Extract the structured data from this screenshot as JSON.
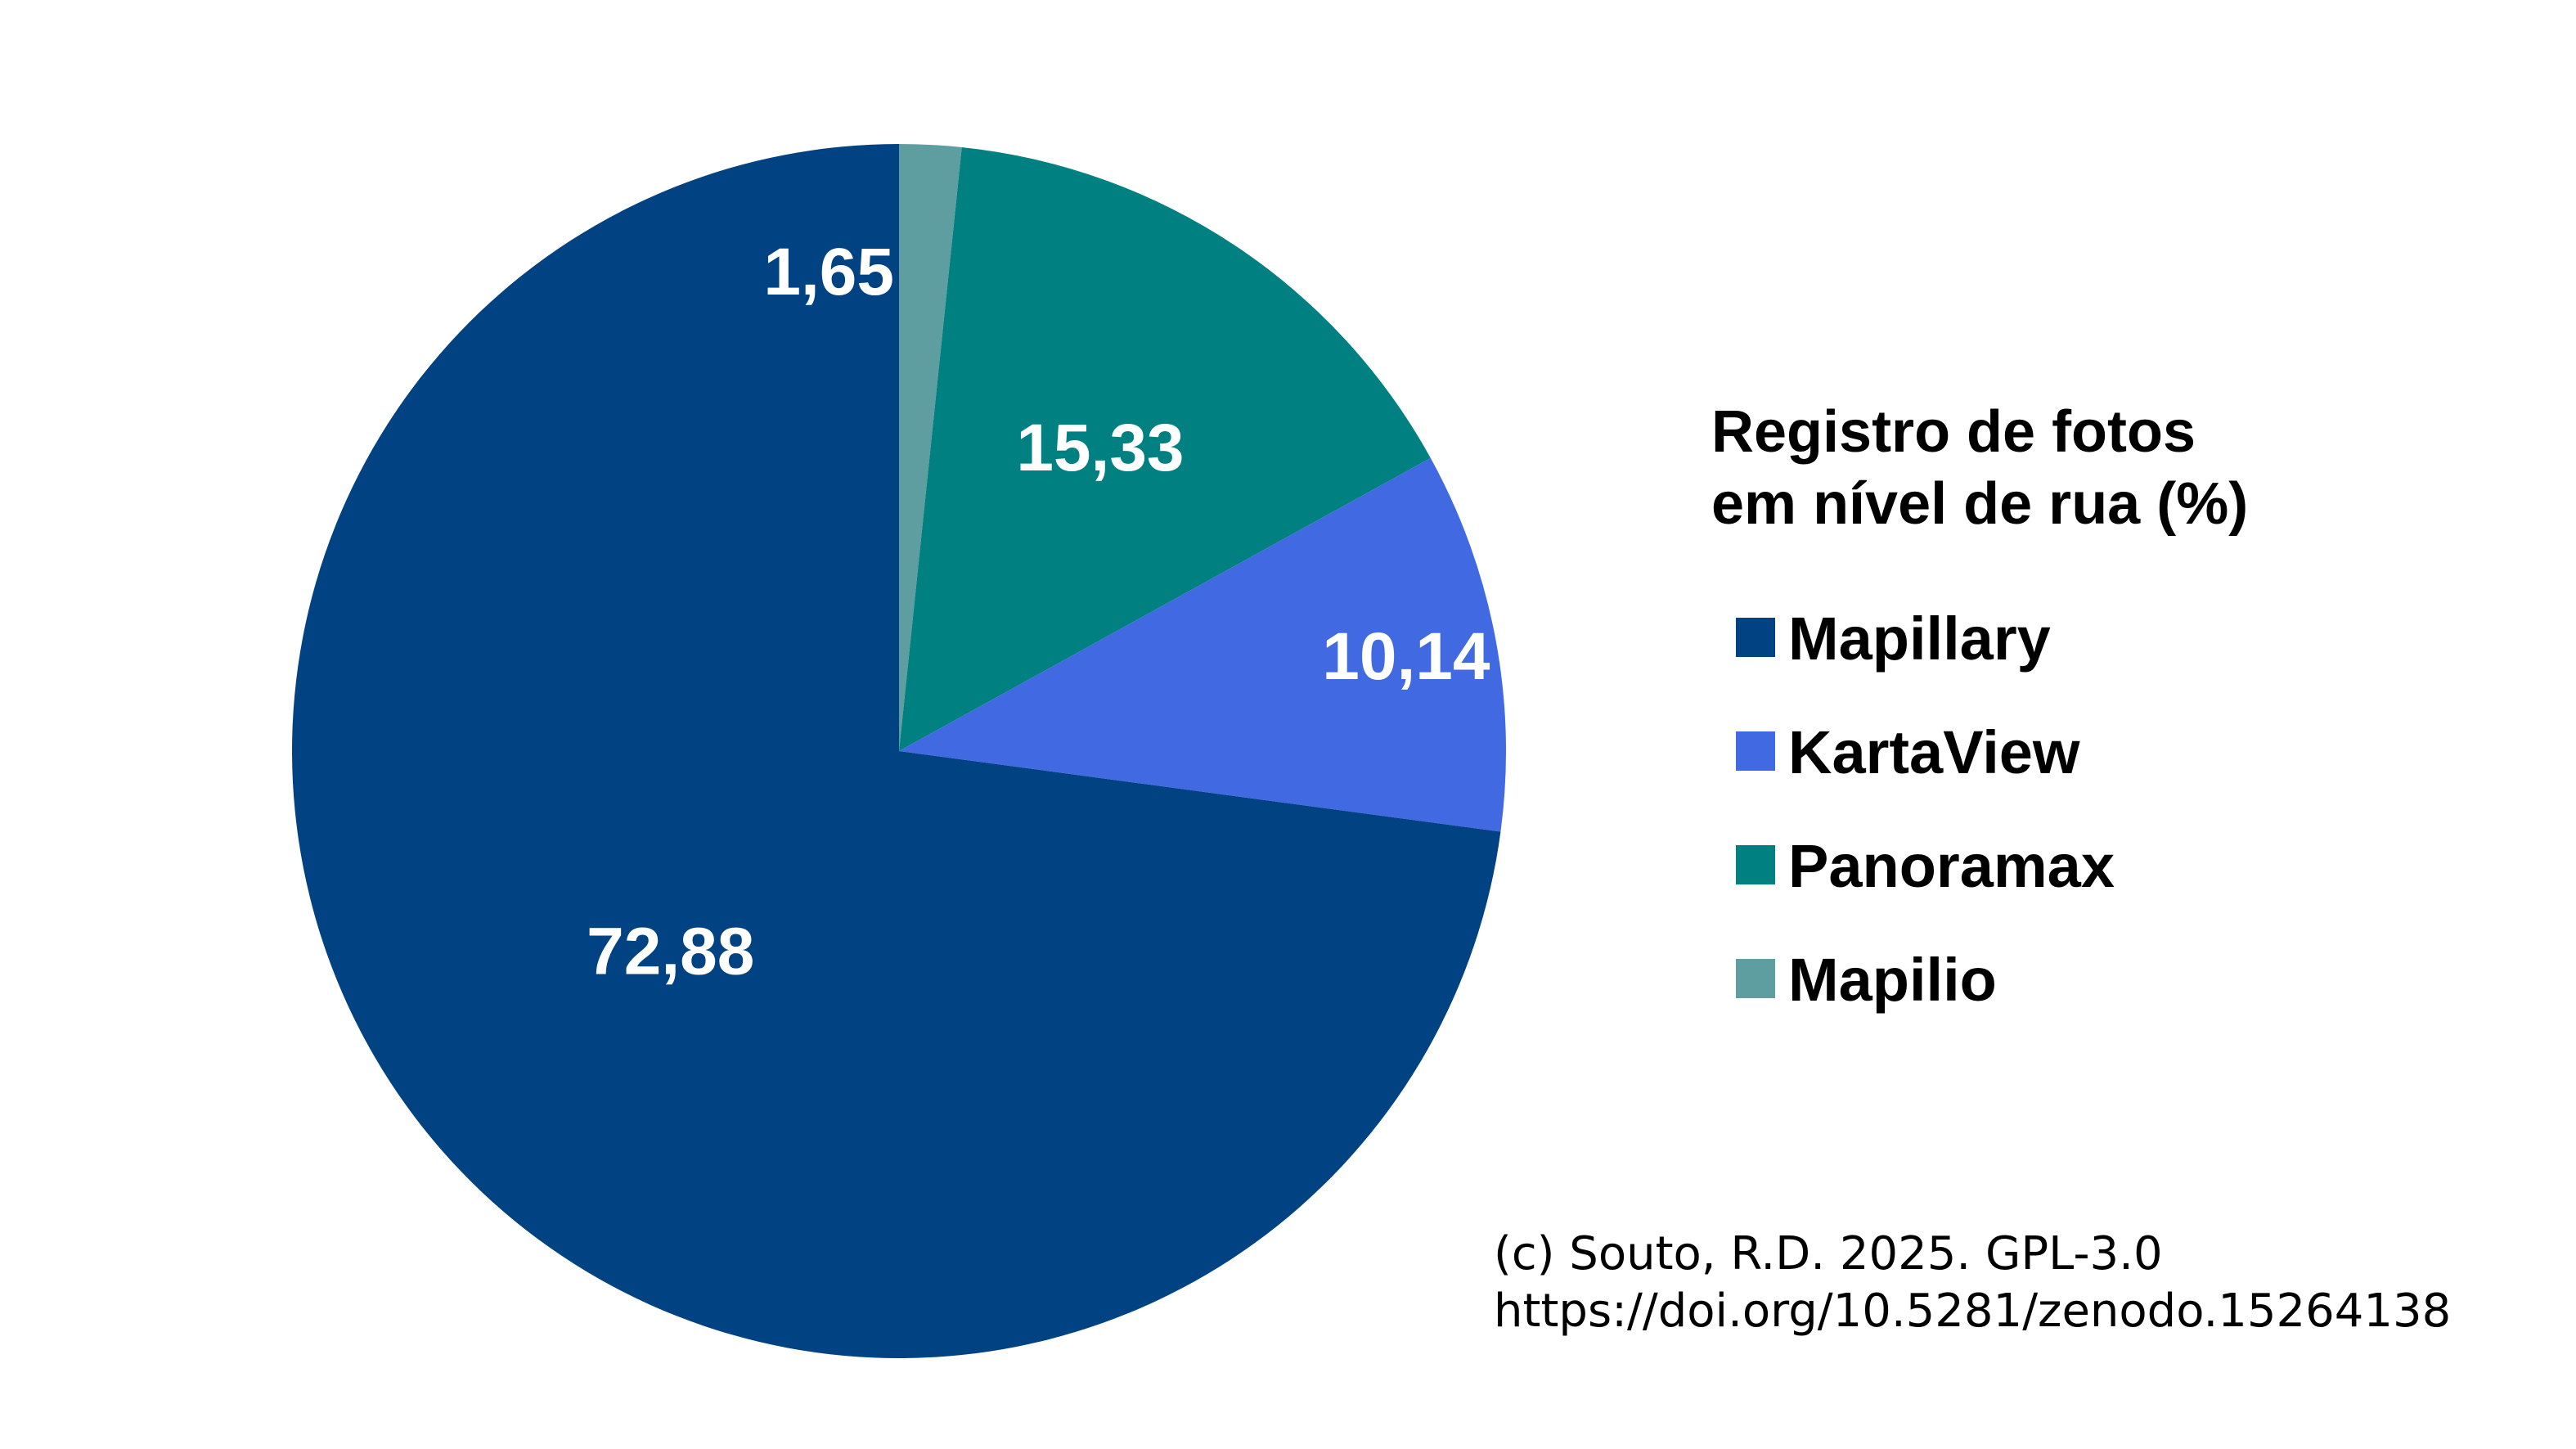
{
  "chart_data": {
    "type": "pie",
    "categories": [
      "Mapillary",
      "KartaView",
      "Panoramax",
      "Mapilio"
    ],
    "values": [
      72.88,
      10.14,
      15.33,
      1.65
    ],
    "value_labels": [
      "72,88",
      "10,14",
      "15,33",
      "1,65"
    ],
    "colors": [
      "#014282",
      "#4169e1",
      "#008080",
      "#5f9ea0"
    ],
    "legend": {
      "title_line1": "Registro de fotos",
      "title_line2": "em nível de rua (%)",
      "placement": "right"
    },
    "start_angle": "top",
    "direction": "clockwise",
    "slice_order": [
      "Mapilio",
      "Panoramax",
      "KartaView",
      "Mapillary"
    ]
  },
  "credit": {
    "line1": "(c) Souto, R.D. 2025. GPL-3.0",
    "line2": "https://doi.org/10.5281/zenodo.15264138"
  }
}
